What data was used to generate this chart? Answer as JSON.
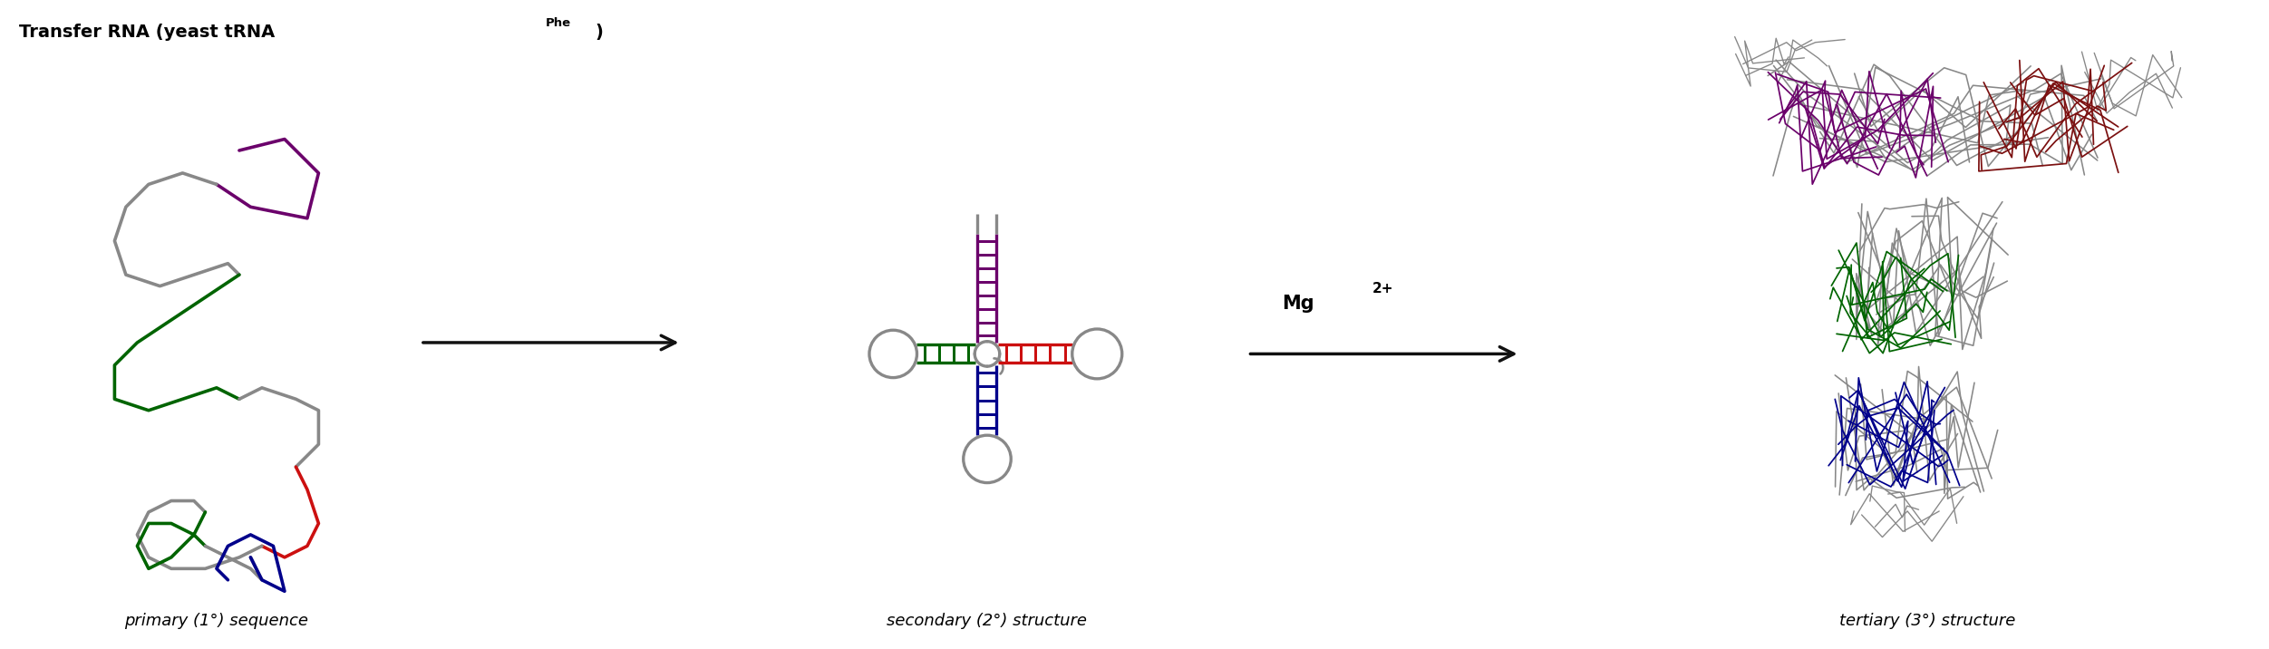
{
  "title_main": "Transfer RNA (yeast tRNA",
  "title_super": "Phe",
  "title_close": ")",
  "label1": "primary (1°) sequence",
  "label2": "secondary (2°) structure",
  "label3": "tertiary (3°) structure",
  "mg_label": "Mg",
  "mg_super": "2+",
  "bg_color": "#ffffff",
  "arrow_color": "#111111",
  "colors": {
    "purple": "#6B006B",
    "green": "#006400",
    "red": "#cc1010",
    "blue": "#00008B",
    "gray": "#888888",
    "darkgray": "#444444",
    "darkred": "#7B1010",
    "darkpurple": "#4B0082"
  },
  "fig_width": 25.03,
  "fig_height": 7.16
}
